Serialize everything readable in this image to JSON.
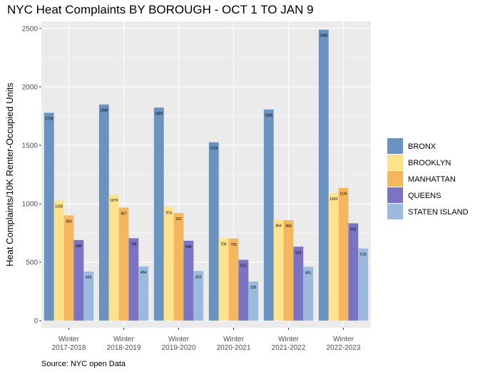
{
  "chart_data": {
    "type": "bar",
    "title": "NYC Heat Complaints BY BOROUGH - OCT 1 TO JAN 9",
    "caption": "Source: NYC open Data",
    "xlabel": "",
    "ylabel": "Heat Complaints/10K Renter-Occupied Units",
    "ylim": [
      -60,
      2560
    ],
    "yticks": [
      0,
      500,
      1000,
      1500,
      2000,
      2500
    ],
    "categories": [
      [
        "Winter",
        "2017-2018"
      ],
      [
        "Winter",
        "2018-2019"
      ],
      [
        "Winter",
        "2019-2020"
      ],
      [
        "Winter",
        "2020-2021"
      ],
      [
        "Winter",
        "2021-2022"
      ],
      [
        "Winter",
        "2022-2023"
      ]
    ],
    "series": [
      {
        "name": "BRONX",
        "color": "#6a93bf",
        "values": [
          1778,
          1849,
          1823,
          1526,
          1806,
          2489
        ]
      },
      {
        "name": "BROOKLYN",
        "color": "#ffe38c",
        "values": [
          1028,
          1079,
          974,
          706,
          864,
          1093
        ]
      },
      {
        "name": "MANHATTAN",
        "color": "#f5b75e",
        "values": [
          900,
          967,
          921,
          703,
          859,
          1136
        ]
      },
      {
        "name": "QUEENS",
        "color": "#7b73c4",
        "values": [
          690,
          705,
          684,
          521,
          633,
          833
        ]
      },
      {
        "name": "STATEN ISLAND",
        "color": "#9bbadd",
        "values": [
          420,
          464,
          425,
          335,
          461,
          618
        ]
      }
    ],
    "legend_position": "right",
    "grid": true,
    "panel_background": "#ebebeb"
  }
}
